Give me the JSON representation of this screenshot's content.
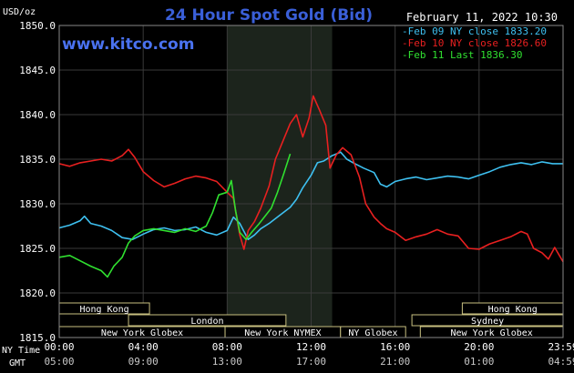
{
  "chart_data": {
    "type": "line",
    "title": "24 Hour Spot Gold (Bid)",
    "watermark": "www.kitco.com",
    "timestamp": "February 11, 2022 10:30",
    "ylabel": "USD/oz",
    "ylim": [
      1815,
      1850
    ],
    "yticks": [
      "1850.0",
      "1845.0",
      "1840.0",
      "1835.0",
      "1830.0",
      "1825.0",
      "1820.0",
      "1815.0"
    ],
    "xlim": [
      0,
      24
    ],
    "x_row_labels": {
      "ny": "NY Time",
      "gmt": "GMT"
    },
    "xticks_ny": [
      "00:00",
      "04:00",
      "08:00",
      "12:00",
      "16:00",
      "20:00",
      "23:59"
    ],
    "xticks_gmt": [
      "05:00",
      "09:00",
      "13:00",
      "17:00",
      "21:00",
      "01:00",
      "04:59"
    ],
    "grid": true,
    "shaded_session": {
      "label": "New York NYMEX",
      "start": 8,
      "end": 13
    },
    "colors": {
      "background": "#000000",
      "plot_bg": "#000000",
      "shade": "#1c241c",
      "grid": "#3a3a3a",
      "title": "#3a5fd8",
      "watermark": "#4a72f0",
      "text": "#ffffff",
      "market_box_border": "#c8c080",
      "market_text": "#ffffff"
    },
    "legend_position": "top-right",
    "series": [
      {
        "name": "Feb 09 NY close 1833.20",
        "color": "#3ec0f0",
        "points": [
          [
            0,
            1827.3
          ],
          [
            0.5,
            1827.6
          ],
          [
            1,
            1828.1
          ],
          [
            1.2,
            1828.6
          ],
          [
            1.5,
            1827.8
          ],
          [
            2,
            1827.5
          ],
          [
            2.5,
            1827.0
          ],
          [
            3,
            1826.2
          ],
          [
            3.5,
            1826.0
          ],
          [
            4,
            1826.6
          ],
          [
            4.5,
            1827.1
          ],
          [
            5,
            1827.3
          ],
          [
            5.5,
            1827.0
          ],
          [
            6,
            1827.1
          ],
          [
            6.5,
            1827.4
          ],
          [
            7,
            1826.8
          ],
          [
            7.5,
            1826.5
          ],
          [
            8,
            1827.0
          ],
          [
            8.3,
            1828.5
          ],
          [
            8.6,
            1827.8
          ],
          [
            9,
            1826.0
          ],
          [
            9.3,
            1826.5
          ],
          [
            9.6,
            1827.2
          ],
          [
            10,
            1827.8
          ],
          [
            10.5,
            1828.7
          ],
          [
            11,
            1829.6
          ],
          [
            11.3,
            1830.5
          ],
          [
            11.6,
            1831.8
          ],
          [
            12,
            1833.2
          ],
          [
            12.3,
            1834.6
          ],
          [
            12.6,
            1834.8
          ],
          [
            13,
            1835.4
          ],
          [
            13.4,
            1835.8
          ],
          [
            13.7,
            1835.0
          ],
          [
            14,
            1834.6
          ],
          [
            14.5,
            1834.0
          ],
          [
            15,
            1833.5
          ],
          [
            15.3,
            1832.2
          ],
          [
            15.6,
            1831.9
          ],
          [
            16,
            1832.5
          ],
          [
            16.5,
            1832.8
          ],
          [
            17,
            1833.0
          ],
          [
            17.5,
            1832.7
          ],
          [
            18,
            1832.9
          ],
          [
            18.5,
            1833.1
          ],
          [
            19,
            1833.0
          ],
          [
            19.5,
            1832.8
          ],
          [
            20,
            1833.2
          ],
          [
            20.5,
            1833.6
          ],
          [
            21,
            1834.1
          ],
          [
            21.5,
            1834.4
          ],
          [
            22,
            1834.6
          ],
          [
            22.5,
            1834.4
          ],
          [
            23,
            1834.7
          ],
          [
            23.5,
            1834.5
          ],
          [
            24,
            1834.5
          ]
        ]
      },
      {
        "name": "Feb 10 NY close 1826.60",
        "color": "#e82020",
        "points": [
          [
            0,
            1834.5
          ],
          [
            0.5,
            1834.2
          ],
          [
            1,
            1834.6
          ],
          [
            1.5,
            1834.8
          ],
          [
            2,
            1835.0
          ],
          [
            2.5,
            1834.8
          ],
          [
            3,
            1835.4
          ],
          [
            3.3,
            1836.1
          ],
          [
            3.6,
            1835.2
          ],
          [
            4,
            1833.6
          ],
          [
            4.5,
            1832.6
          ],
          [
            5,
            1831.9
          ],
          [
            5.5,
            1832.3
          ],
          [
            6,
            1832.8
          ],
          [
            6.5,
            1833.1
          ],
          [
            7,
            1832.9
          ],
          [
            7.5,
            1832.5
          ],
          [
            8,
            1831.3
          ],
          [
            8.3,
            1830.6
          ],
          [
            8.6,
            1826.5
          ],
          [
            8.8,
            1824.9
          ],
          [
            9,
            1827.0
          ],
          [
            9.3,
            1828.0
          ],
          [
            9.6,
            1829.5
          ],
          [
            10,
            1832.0
          ],
          [
            10.3,
            1835.0
          ],
          [
            10.6,
            1836.7
          ],
          [
            11,
            1839.0
          ],
          [
            11.3,
            1840.0
          ],
          [
            11.6,
            1837.5
          ],
          [
            11.9,
            1839.6
          ],
          [
            12.1,
            1842.1
          ],
          [
            12.4,
            1840.5
          ],
          [
            12.7,
            1838.8
          ],
          [
            12.9,
            1834.0
          ],
          [
            13.2,
            1835.5
          ],
          [
            13.5,
            1836.3
          ],
          [
            13.9,
            1835.5
          ],
          [
            14.3,
            1833.0
          ],
          [
            14.6,
            1830.0
          ],
          [
            15,
            1828.5
          ],
          [
            15.3,
            1827.8
          ],
          [
            15.6,
            1827.2
          ],
          [
            16,
            1826.8
          ],
          [
            16.5,
            1825.9
          ],
          [
            17,
            1826.3
          ],
          [
            17.5,
            1826.6
          ],
          [
            18,
            1827.1
          ],
          [
            18.5,
            1826.6
          ],
          [
            19,
            1826.4
          ],
          [
            19.5,
            1825.0
          ],
          [
            20,
            1824.9
          ],
          [
            20.5,
            1825.5
          ],
          [
            21,
            1825.9
          ],
          [
            21.5,
            1826.3
          ],
          [
            22,
            1826.9
          ],
          [
            22.3,
            1826.6
          ],
          [
            22.6,
            1825.0
          ],
          [
            23,
            1824.5
          ],
          [
            23.3,
            1823.8
          ],
          [
            23.6,
            1825.1
          ],
          [
            24,
            1823.5
          ]
        ]
      },
      {
        "name": "Feb 11 Last 1836.30",
        "color": "#30e030",
        "points": [
          [
            0,
            1824.0
          ],
          [
            0.5,
            1824.2
          ],
          [
            1,
            1823.6
          ],
          [
            1.5,
            1823.0
          ],
          [
            2,
            1822.5
          ],
          [
            2.3,
            1821.8
          ],
          [
            2.6,
            1823.0
          ],
          [
            3,
            1824.0
          ],
          [
            3.3,
            1825.6
          ],
          [
            3.6,
            1826.4
          ],
          [
            4,
            1827.0
          ],
          [
            4.5,
            1827.2
          ],
          [
            5,
            1827.0
          ],
          [
            5.5,
            1826.8
          ],
          [
            6,
            1827.2
          ],
          [
            6.5,
            1826.9
          ],
          [
            7,
            1827.5
          ],
          [
            7.3,
            1829.0
          ],
          [
            7.6,
            1831.0
          ],
          [
            8,
            1831.3
          ],
          [
            8.2,
            1832.6
          ],
          [
            8.4,
            1829.2
          ],
          [
            8.6,
            1826.8
          ],
          [
            8.9,
            1826.0
          ],
          [
            9.2,
            1826.9
          ],
          [
            9.5,
            1827.7
          ],
          [
            9.8,
            1828.6
          ],
          [
            10.1,
            1829.5
          ],
          [
            10.4,
            1831.3
          ],
          [
            10.7,
            1833.4
          ],
          [
            11,
            1835.6
          ]
        ]
      }
    ],
    "markets": [
      {
        "name": "Hong Kong",
        "row": 0,
        "start": 0,
        "end": 4.3
      },
      {
        "name": "Hong Kong",
        "row": 0,
        "start": 19.2,
        "end": 24
      },
      {
        "name": "London",
        "row": 1,
        "start": 3.3,
        "end": 10.8
      },
      {
        "name": "Sydney",
        "row": 1,
        "start": 16.8,
        "end": 24
      },
      {
        "name": "New York Globex",
        "row": 2,
        "start": 0,
        "end": 7.9
      },
      {
        "name": "New York NYMEX",
        "row": 2,
        "start": 7.9,
        "end": 13.4
      },
      {
        "name": "NY Globex",
        "row": 2,
        "start": 13.4,
        "end": 16.5
      },
      {
        "name": "New York Globex",
        "row": 2,
        "start": 17.2,
        "end": 24
      }
    ]
  }
}
